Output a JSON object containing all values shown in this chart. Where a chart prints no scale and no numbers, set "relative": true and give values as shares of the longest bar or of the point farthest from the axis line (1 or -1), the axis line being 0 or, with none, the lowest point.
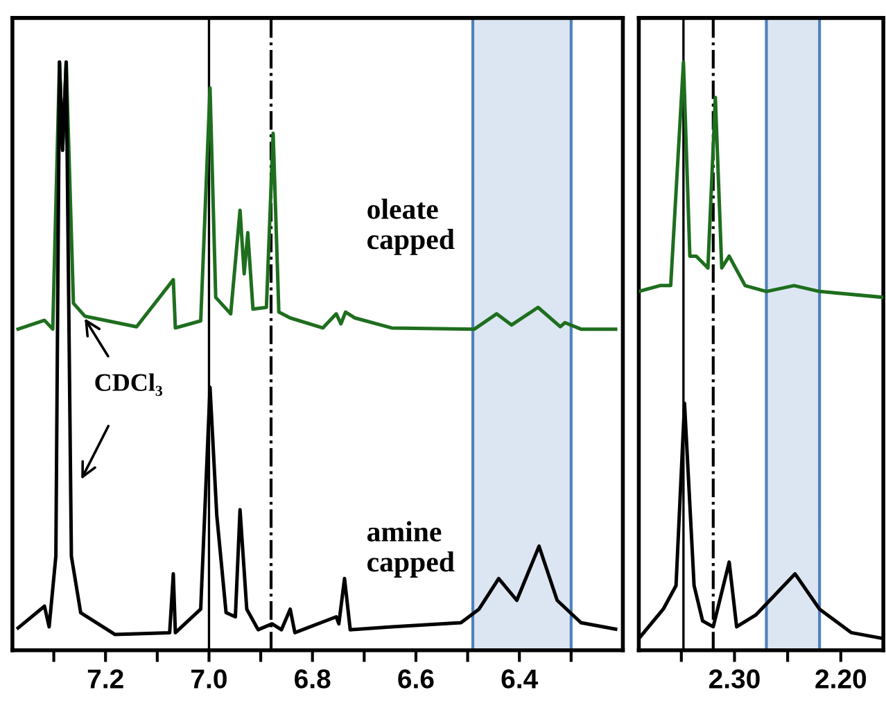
{
  "chart_data": [
    {
      "type": "line",
      "relative": true,
      "tick_labels": "x",
      "grid": false,
      "legend": false,
      "xlim": [
        7.38,
        6.2
      ],
      "xticks": [
        {
          "value": 7.3,
          "label": null
        },
        7.2,
        {
          "value": 7.1,
          "label": null
        },
        {
          "value": 7.0,
          "label": "7.0"
        },
        {
          "value": 6.9,
          "label": null
        },
        6.8,
        {
          "value": 6.7,
          "label": null
        },
        6.6,
        {
          "value": 6.5,
          "label": null
        },
        6.4,
        {
          "value": 6.3,
          "label": null
        }
      ],
      "series": [
        {
          "color": "#1e6e1e",
          "x": [
            7.369,
            7.318,
            7.302,
            7.289,
            7.283,
            7.276,
            7.262,
            7.24,
            7.14,
            7.069,
            7.065,
            7.016,
            6.998,
            6.987,
            6.958,
            6.94,
            6.932,
            6.925,
            6.915,
            6.889,
            6.876,
            6.865,
            6.843,
            6.78,
            6.754,
            6.745,
            6.736,
            6.718,
            6.647,
            6.487,
            6.444,
            6.415,
            6.364,
            6.321,
            6.312,
            6.281,
            6.214
          ],
          "values": [
            0.546,
            0.561,
            0.546,
            1.0,
            0.85,
            1.0,
            0.59,
            0.568,
            0.55,
            0.63,
            0.548,
            0.56,
            0.956,
            0.6,
            0.572,
            0.748,
            0.64,
            0.71,
            0.58,
            0.583,
            0.879,
            0.575,
            0.565,
            0.548,
            0.572,
            0.555,
            0.575,
            0.565,
            0.548,
            0.546,
            0.572,
            0.553,
            0.583,
            0.55,
            0.557,
            0.546,
            0.546
          ]
        },
        {
          "color": "#000000",
          "x": [
            7.369,
            7.318,
            7.309,
            7.296,
            7.289,
            7.283,
            7.276,
            7.266,
            7.248,
            7.182,
            7.076,
            7.069,
            7.065,
            7.016,
            6.998,
            6.985,
            6.967,
            6.949,
            6.94,
            6.927,
            6.905,
            6.878,
            6.86,
            6.843,
            6.834,
            6.754,
            6.749,
            6.738,
            6.727,
            6.647,
            6.513,
            6.478,
            6.44,
            6.405,
            6.362,
            6.327,
            6.281,
            6.214
          ],
          "values": [
            0.038,
            0.075,
            0.04,
            0.16,
            1.0,
            0.85,
            1.0,
            0.16,
            0.064,
            0.027,
            0.03,
            0.13,
            0.03,
            0.07,
            0.447,
            0.23,
            0.064,
            0.057,
            0.239,
            0.07,
            0.035,
            0.045,
            0.035,
            0.07,
            0.03,
            0.057,
            0.045,
            0.122,
            0.035,
            0.04,
            0.047,
            0.07,
            0.122,
            0.085,
            0.177,
            0.085,
            0.047,
            0.036
          ]
        }
      ],
      "ref_lines": [
        {
          "axis": "x",
          "value": 7.0,
          "color": "#000000",
          "line_style": "solid"
        },
        {
          "axis": "x",
          "value": 6.88,
          "color": "#000000",
          "line_style": "dashdot"
        }
      ],
      "bands": [
        {
          "axis": "x",
          "from": 6.49,
          "to": 6.3,
          "color": "#dce6f2"
        }
      ],
      "annotations": [
        "oleate\ncapped",
        "amine\ncapped",
        "CDCl₃"
      ]
    },
    {
      "type": "line",
      "relative": true,
      "tick_labels": "x",
      "grid": false,
      "legend": false,
      "xlim": [
        2.39,
        2.16
      ],
      "xticks": [
        {
          "value": 2.35,
          "label": null
        },
        {
          "value": 2.3,
          "label": "2.30"
        },
        {
          "value": 2.25,
          "label": null
        },
        {
          "value": 2.2,
          "label": "2.20"
        }
      ],
      "series": [
        {
          "color": "#1e6e1e",
          "x": [
            2.39,
            2.37,
            2.36,
            2.348,
            2.342,
            2.336,
            2.325,
            2.318,
            2.312,
            2.305,
            2.29,
            2.27,
            2.244,
            2.22,
            2.16
          ],
          "values": [
            0.61,
            0.62,
            0.62,
            1.0,
            0.67,
            0.67,
            0.65,
            0.94,
            0.65,
            0.67,
            0.62,
            0.61,
            0.62,
            0.61,
            0.6
          ]
        },
        {
          "color": "#000000",
          "x": [
            2.39,
            2.367,
            2.355,
            2.347,
            2.338,
            2.33,
            2.32,
            2.305,
            2.298,
            2.28,
            2.243,
            2.22,
            2.19,
            2.16
          ],
          "values": [
            0.02,
            0.07,
            0.11,
            0.42,
            0.11,
            0.05,
            0.04,
            0.15,
            0.04,
            0.06,
            0.13,
            0.07,
            0.03,
            0.02
          ]
        }
      ],
      "ref_lines": [
        {
          "axis": "x",
          "value": 2.348,
          "color": "#000000",
          "line_style": "solid"
        },
        {
          "axis": "x",
          "value": 2.32,
          "color": "#000000",
          "line_style": "dashdot"
        }
      ],
      "bands": [
        {
          "axis": "x",
          "from": 2.27,
          "to": 2.22,
          "color": "#dce6f2"
        }
      ]
    }
  ]
}
